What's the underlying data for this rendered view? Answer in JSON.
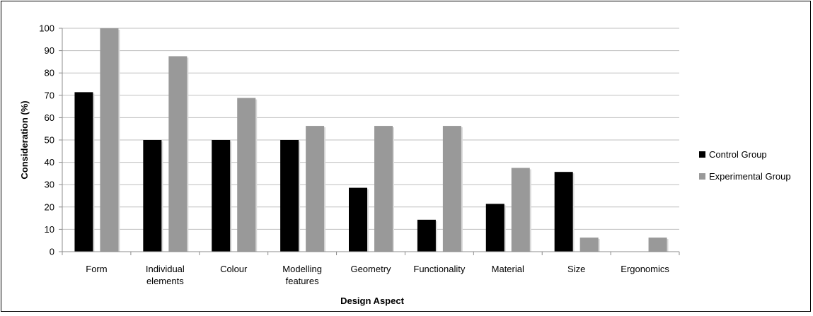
{
  "chart_data": {
    "type": "bar",
    "title": "",
    "xlabel": "Design Aspect",
    "ylabel": "Consideration (%)",
    "ylim": [
      0,
      100
    ],
    "yticks": [
      "0",
      "10",
      "20",
      "30",
      "40",
      "50",
      "60",
      "70",
      "80",
      "90",
      "100"
    ],
    "categories": [
      [
        "Form"
      ],
      [
        "Individual",
        "elements"
      ],
      [
        "Colour"
      ],
      [
        "Modelling",
        "features"
      ],
      [
        "Geometry"
      ],
      [
        "Functionality"
      ],
      [
        "Material"
      ],
      [
        "Size"
      ],
      [
        "Ergonomics"
      ]
    ],
    "series": [
      {
        "name": "Control Group",
        "color": "#000000",
        "values": [
          71.4,
          50,
          50,
          50,
          28.6,
          14.3,
          21.4,
          35.7,
          0
        ]
      },
      {
        "name": "Experimental Group",
        "color": "#999999",
        "values": [
          100,
          87.5,
          68.8,
          56.3,
          56.3,
          56.3,
          37.5,
          6.3,
          6.3
        ]
      }
    ],
    "grid": true,
    "legend_position": "right"
  }
}
